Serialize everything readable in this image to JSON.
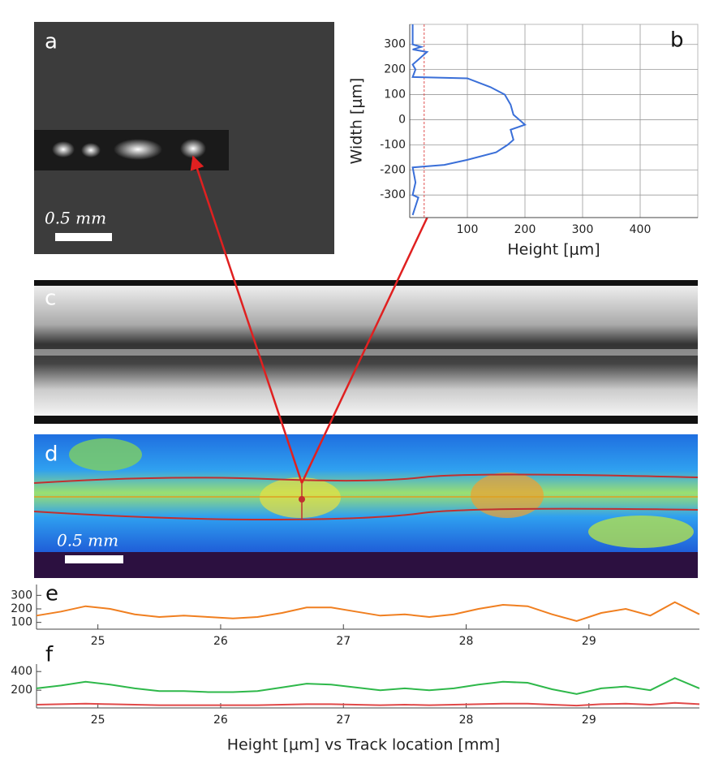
{
  "image_panels": [
    {
      "label": "a",
      "scale_bar": "0.5 mm"
    },
    {
      "label": "c"
    },
    {
      "label": "d",
      "scale_bar": "0.5 mm"
    }
  ],
  "caption": "Height [μm] vs Track location [mm]",
  "chart_data": [
    {
      "type": "line",
      "panel_label": "b",
      "x_label": "Height [μm]",
      "y_label": "Width [μm]",
      "grid": true,
      "color": "#3a6fd8",
      "reference_line_x": 25,
      "reference_color": "#e05050",
      "x": [
        5,
        5,
        20,
        5,
        30,
        5,
        10,
        5,
        100,
        140,
        165,
        175,
        180,
        200,
        175,
        180,
        170,
        150,
        100,
        60,
        5,
        10,
        5,
        15,
        5
      ],
      "values": [
        380,
        300,
        290,
        280,
        270,
        220,
        200,
        170,
        165,
        130,
        100,
        60,
        20,
        -20,
        -40,
        -80,
        -100,
        -130,
        -160,
        -180,
        -190,
        -250,
        -300,
        -310,
        -380
      ],
      "xlim": [
        0,
        500
      ],
      "xticks": [
        100,
        200,
        300,
        400
      ],
      "ylim": [
        -390,
        380
      ],
      "yticks": [
        -300,
        -200,
        -100,
        0,
        100,
        200,
        300
      ]
    },
    {
      "type": "line",
      "panel_label": "e",
      "x": [
        24.5,
        24.7,
        24.9,
        25.1,
        25.3,
        25.5,
        25.7,
        25.9,
        26.1,
        26.3,
        26.5,
        26.7,
        26.9,
        27.1,
        27.3,
        27.5,
        27.7,
        27.9,
        28.1,
        28.3,
        28.5,
        28.7,
        28.9,
        29.1,
        29.3,
        29.5,
        29.7,
        29.9
      ],
      "series": [
        {
          "color": "#f07f20",
          "values": [
            150,
            180,
            220,
            200,
            160,
            140,
            150,
            140,
            130,
            140,
            170,
            210,
            210,
            180,
            150,
            160,
            140,
            160,
            200,
            230,
            220,
            160,
            110,
            170,
            200,
            150,
            250,
            160
          ]
        }
      ],
      "xlim": [
        24.5,
        29.9
      ],
      "xticks": [
        25,
        26,
        27,
        28,
        29
      ],
      "ylim": [
        50,
        380
      ],
      "yticks": [
        100,
        200,
        300
      ]
    },
    {
      "type": "line",
      "panel_label": "f",
      "x": [
        24.5,
        24.7,
        24.9,
        25.1,
        25.3,
        25.5,
        25.7,
        25.9,
        26.1,
        26.3,
        26.5,
        26.7,
        26.9,
        27.1,
        27.3,
        27.5,
        27.7,
        27.9,
        28.1,
        28.3,
        28.5,
        28.7,
        28.9,
        29.1,
        29.3,
        29.5,
        29.7,
        29.9
      ],
      "series": [
        {
          "color": "#2eb84a",
          "values": [
            220,
            250,
            290,
            260,
            220,
            190,
            190,
            180,
            180,
            190,
            230,
            270,
            260,
            230,
            200,
            220,
            200,
            220,
            260,
            290,
            280,
            210,
            160,
            220,
            240,
            200,
            330,
            220
          ]
        },
        {
          "color": "#e04848",
          "values": [
            45,
            50,
            55,
            50,
            45,
            40,
            40,
            40,
            40,
            40,
            45,
            50,
            50,
            45,
            40,
            45,
            40,
            45,
            50,
            55,
            55,
            45,
            35,
            50,
            55,
            45,
            65,
            50
          ]
        }
      ],
      "xlim": [
        24.5,
        29.9
      ],
      "xticks": [
        25,
        26,
        27,
        28,
        29
      ],
      "ylim": [
        10,
        480
      ],
      "yticks": [
        200,
        400
      ]
    }
  ]
}
